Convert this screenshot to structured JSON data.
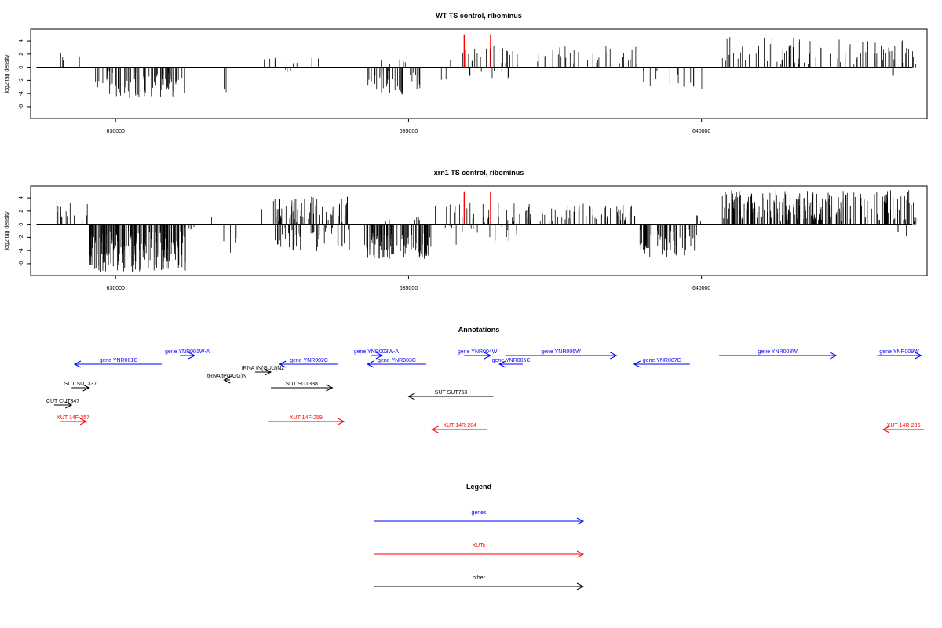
{
  "chart_data": [
    {
      "type": "bar",
      "title": "WT TS control, ribominus",
      "ylabel": "log2 tag density",
      "xlabel": "",
      "xlim": [
        628550,
        643850
      ],
      "ylim": [
        -7.8,
        5.8
      ],
      "yticks": [
        -6,
        -4,
        -2,
        0,
        2,
        4
      ],
      "xticks": [
        630000,
        635000,
        640000
      ],
      "xtick_labels": [
        "630000",
        "635000",
        "640000"
      ],
      "baseline": [
        628650,
        643600
      ],
      "highlight_color": "#ff0000",
      "highlights": [
        {
          "x": 635950,
          "value": 5.0
        },
        {
          "x": 636400,
          "value": 5.0
        }
      ],
      "segments": [
        {
          "start": 629000,
          "end": 629250,
          "n": 4,
          "min": 0.3,
          "max": 2.2,
          "seed": 3
        },
        {
          "start": 629380,
          "end": 629430,
          "n": 1,
          "min": 1.5,
          "max": 1.7,
          "seed": 4
        },
        {
          "start": 629650,
          "end": 631200,
          "n": 85,
          "min": -4.8,
          "max": -0.6,
          "seed": 5
        },
        {
          "start": 631850,
          "end": 631900,
          "n": 2,
          "min": -4.6,
          "max": -2.0,
          "seed": 6
        },
        {
          "start": 632450,
          "end": 633600,
          "n": 9,
          "min": 0.5,
          "max": 1.9,
          "seed": 7
        },
        {
          "start": 632700,
          "end": 633200,
          "n": 3,
          "min": -1.0,
          "max": -0.3,
          "seed": 8
        },
        {
          "start": 634300,
          "end": 635200,
          "n": 40,
          "min": -4.2,
          "max": -0.5,
          "seed": 9
        },
        {
          "start": 634500,
          "end": 635000,
          "n": 6,
          "min": 0.4,
          "max": 1.6,
          "seed": 10
        },
        {
          "start": 635550,
          "end": 635650,
          "n": 2,
          "min": -2.2,
          "max": -1.0,
          "seed": 11
        },
        {
          "start": 635700,
          "end": 636900,
          "n": 22,
          "min": 0.4,
          "max": 3.2,
          "seed": 12
        },
        {
          "start": 636000,
          "end": 636800,
          "n": 8,
          "min": -1.8,
          "max": -0.4,
          "seed": 13
        },
        {
          "start": 637200,
          "end": 638900,
          "n": 35,
          "min": 0.4,
          "max": 3.2,
          "seed": 14
        },
        {
          "start": 639000,
          "end": 639900,
          "n": 12,
          "min": -3.0,
          "max": -0.5,
          "seed": 15
        },
        {
          "start": 640000,
          "end": 640050,
          "n": 1,
          "min": -3.4,
          "max": -3.2,
          "seed": 16
        },
        {
          "start": 640350,
          "end": 643700,
          "n": 90,
          "min": 0.4,
          "max": 4.6,
          "seed": 17
        },
        {
          "start": 643200,
          "end": 643300,
          "n": 2,
          "min": -1.8,
          "max": -1.2,
          "seed": 18
        }
      ]
    },
    {
      "type": "bar",
      "title": "xrn1 TS control, ribominus",
      "ylabel": "log2 tag density",
      "xlabel": "",
      "xlim": [
        628550,
        643850
      ],
      "ylim": [
        -7.8,
        5.8
      ],
      "yticks": [
        -6,
        -4,
        -2,
        0,
        2,
        4
      ],
      "xticks": [
        630000,
        635000,
        640000
      ],
      "xtick_labels": [
        "630000",
        "635000",
        "640000"
      ],
      "baseline": [
        628650,
        643600
      ],
      "highlight_color": "#ff0000",
      "highlights": [
        {
          "x": 635950,
          "value": 5.0
        },
        {
          "x": 636400,
          "value": 5.0
        }
      ],
      "segments": [
        {
          "start": 628900,
          "end": 629550,
          "n": 16,
          "min": 0.4,
          "max": 3.6,
          "seed": 21
        },
        {
          "start": 629550,
          "end": 631200,
          "n": 180,
          "min": -7.3,
          "max": -1.0,
          "seed": 22
        },
        {
          "start": 631150,
          "end": 631350,
          "n": 5,
          "min": -1.2,
          "max": -0.3,
          "seed": 23
        },
        {
          "start": 631600,
          "end": 631650,
          "n": 1,
          "min": 1.0,
          "max": 1.2,
          "seed": 24
        },
        {
          "start": 631800,
          "end": 632200,
          "n": 4,
          "min": -4.5,
          "max": -0.5,
          "seed": 25
        },
        {
          "start": 632450,
          "end": 632550,
          "n": 2,
          "min": 2.2,
          "max": 2.6,
          "seed": 26
        },
        {
          "start": 632650,
          "end": 634000,
          "n": 120,
          "min": -4.2,
          "max": 4.2,
          "seed": 27
        },
        {
          "start": 634250,
          "end": 635400,
          "n": 110,
          "min": -5.3,
          "max": -1.2,
          "seed": 28
        },
        {
          "start": 634600,
          "end": 635200,
          "n": 8,
          "min": 0.4,
          "max": 1.4,
          "seed": 29
        },
        {
          "start": 635450,
          "end": 636900,
          "n": 45,
          "min": -3.2,
          "max": 3.6,
          "seed": 30
        },
        {
          "start": 637000,
          "end": 638900,
          "n": 70,
          "min": 0.4,
          "max": 3.2,
          "seed": 31
        },
        {
          "start": 638950,
          "end": 639950,
          "n": 60,
          "min": -5.0,
          "max": -0.8,
          "seed": 32
        },
        {
          "start": 639900,
          "end": 640000,
          "n": 3,
          "min": 0.5,
          "max": 1.5,
          "seed": 33
        },
        {
          "start": 640350,
          "end": 643700,
          "n": 230,
          "min": 0.5,
          "max": 5.2,
          "seed": 34
        },
        {
          "start": 643300,
          "end": 643500,
          "n": 3,
          "min": -2.4,
          "max": -1.0,
          "seed": 35
        }
      ]
    }
  ],
  "annotations": {
    "title": "Annotations",
    "xlim": [
      628550,
      643850
    ],
    "features": [
      {
        "label": "gene YNR001C",
        "start": 629300,
        "end": 630800,
        "strand": "-",
        "color": "#0000ff"
      },
      {
        "label": "gene YNR001W-A",
        "start": 631100,
        "end": 631350,
        "strand": "+",
        "color": "#0000ff"
      },
      {
        "label": "tRNA tN(GUU)N2",
        "start": 632380,
        "end": 632650,
        "strand": "+",
        "color": "#000000"
      },
      {
        "label": "tRNA tP(AGG)N",
        "start": 631850,
        "end": 631950,
        "strand": "-",
        "color": "#000000"
      },
      {
        "label": "gene YNR002C",
        "start": 632800,
        "end": 633800,
        "strand": "-",
        "color": "#0000ff"
      },
      {
        "label": "gene YNR003W-A",
        "start": 634350,
        "end": 634550,
        "strand": "+",
        "color": "#0000ff"
      },
      {
        "label": "gene YNR003C",
        "start": 634300,
        "end": 635300,
        "strand": "-",
        "color": "#0000ff"
      },
      {
        "label": "gene YNR004W",
        "start": 635950,
        "end": 636400,
        "strand": "+",
        "color": "#0000ff"
      },
      {
        "label": "gene YNR005C",
        "start": 636550,
        "end": 636950,
        "strand": "-",
        "color": "#0000ff"
      },
      {
        "label": "gene YNR006W",
        "start": 636650,
        "end": 638550,
        "strand": "+",
        "color": "#0000ff"
      },
      {
        "label": "gene YNR007C",
        "start": 638850,
        "end": 639800,
        "strand": "-",
        "color": "#0000ff"
      },
      {
        "label": "gene YNR008W",
        "start": 640300,
        "end": 642300,
        "strand": "+",
        "color": "#0000ff"
      },
      {
        "label": "gene YNR009W",
        "start": 643000,
        "end": 643750,
        "strand": "+",
        "color": "#0000ff"
      },
      {
        "label": "SUT SUT337",
        "start": 629250,
        "end": 629550,
        "strand": "+",
        "color": "#000000"
      },
      {
        "label": "SUT SUT338",
        "start": 632650,
        "end": 633700,
        "strand": "+",
        "color": "#000000"
      },
      {
        "label": "SUT SUT753",
        "start": 635000,
        "end": 636450,
        "strand": "-",
        "color": "#000000"
      },
      {
        "label": "CUT CUT347",
        "start": 628950,
        "end": 629250,
        "strand": "+",
        "color": "#000000"
      },
      {
        "label": "XUT 14F-257",
        "start": 629050,
        "end": 629500,
        "strand": "+",
        "color": "#ff0000"
      },
      {
        "label": "XUT 14F-259",
        "start": 632600,
        "end": 633900,
        "strand": "+",
        "color": "#ff0000"
      },
      {
        "label": "XUT 14R-284",
        "start": 635400,
        "end": 636350,
        "strand": "-",
        "color": "#ff0000"
      },
      {
        "label": "XUT 14R-286",
        "start": 643100,
        "end": 643800,
        "strand": "-",
        "color": "#ff0000"
      }
    ]
  },
  "legend": {
    "title": "Legend",
    "items": [
      {
        "label": "genes",
        "color": "#0000ff"
      },
      {
        "label": "XUTs",
        "color": "#ff0000"
      },
      {
        "label": "other",
        "color": "#000000"
      }
    ]
  }
}
